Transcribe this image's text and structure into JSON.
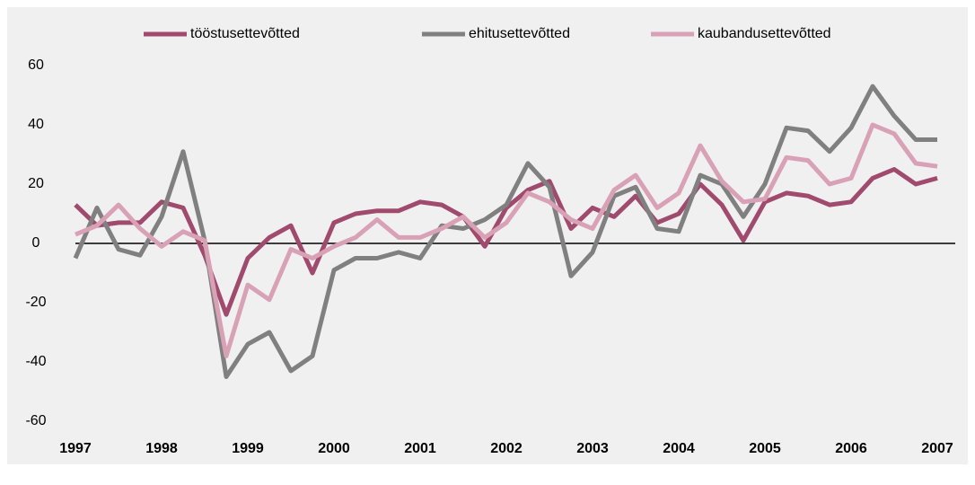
{
  "chart_data": {
    "type": "line",
    "x": [
      1997,
      1997.25,
      1997.5,
      1997.75,
      1998,
      1998.25,
      1998.5,
      1998.75,
      1999,
      1999.25,
      1999.5,
      1999.75,
      2000,
      2000.25,
      2000.5,
      2000.75,
      2001,
      2001.25,
      2001.5,
      2001.75,
      2002,
      2002.25,
      2002.5,
      2002.75,
      2003,
      2003.25,
      2003.5,
      2003.75,
      2004,
      2004.25,
      2004.5,
      2004.75,
      2005,
      2005.25,
      2005.5,
      2005.75,
      2006,
      2006.25,
      2006.5,
      2006.75,
      2007
    ],
    "series": [
      {
        "name": "tööstusettevõtted",
        "color": "#a04a6e",
        "values": [
          13,
          6,
          7,
          7,
          14,
          12,
          -4,
          -24,
          -5,
          2,
          6,
          -10,
          7,
          10,
          11,
          11,
          14,
          13,
          9,
          -1,
          12,
          18,
          21,
          5,
          12,
          9,
          16,
          7,
          10,
          20,
          13,
          1,
          14,
          17,
          16,
          13,
          14,
          22,
          25,
          20,
          22
        ]
      },
      {
        "name": "ehitusettevõtted",
        "color": "#808080",
        "values": [
          -5,
          12,
          -2,
          -4,
          9,
          31,
          1,
          -45,
          -34,
          -30,
          -43,
          -38,
          -9,
          -5,
          -5,
          -3,
          -5,
          6,
          5,
          8,
          13,
          27,
          19,
          -11,
          -3,
          16,
          19,
          5,
          4,
          23,
          20,
          9,
          20,
          39,
          38,
          31,
          39,
          53,
          43,
          35,
          35
        ]
      },
      {
        "name": "kaubandusettevõtted",
        "color": "#d9a1b5",
        "values": [
          3,
          6,
          13,
          5,
          -1,
          4,
          1,
          -38,
          -14,
          -19,
          -2,
          -5,
          -1,
          2,
          8,
          2,
          2,
          5,
          9,
          2,
          7,
          17,
          14,
          8,
          5,
          18,
          23,
          12,
          17,
          33,
          21,
          14,
          15,
          29,
          28,
          20,
          22,
          40,
          37,
          27,
          26
        ]
      }
    ],
    "xlim": [
      1997,
      2007
    ],
    "xticks": [
      1997,
      1998,
      1999,
      2000,
      2001,
      2002,
      2003,
      2004,
      2005,
      2006,
      2007
    ],
    "ylim": [
      -60,
      60
    ],
    "yticks": [
      -60,
      -40,
      -20,
      0,
      20,
      40,
      60
    ]
  }
}
